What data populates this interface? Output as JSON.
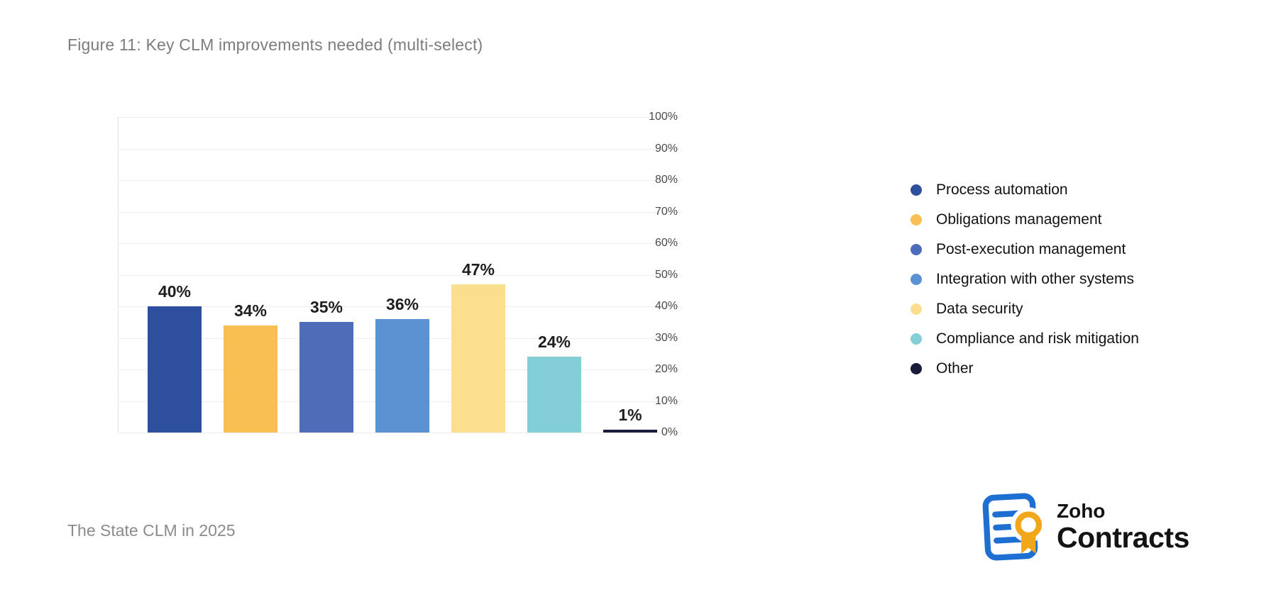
{
  "page": {
    "title": "Figure 11: Key CLM improvements needed (multi-select)",
    "footer": "The State CLM in 2025"
  },
  "chart_data": {
    "type": "bar",
    "title": "Figure 11: Key CLM improvements needed (multi-select)",
    "categories": [
      "Process automation",
      "Obligations management",
      "Post-execution management",
      "Integration with other systems",
      "Data security",
      "Compliance and risk mitigation",
      "Other"
    ],
    "values": [
      40,
      34,
      35,
      36,
      47,
      24,
      1
    ],
    "value_labels": [
      "40%",
      "34%",
      "35%",
      "36%",
      "47%",
      "24%",
      "1%"
    ],
    "colors": [
      "#2e4f9e",
      "#f8bf52",
      "#4e6cb7",
      "#5b93d2",
      "#fbdf8f",
      "#84ced8",
      "#191d3a"
    ],
    "xlabel": "",
    "ylabel": "",
    "ylim": [
      0,
      100
    ],
    "y_ticks": [
      "100%",
      "90%",
      "80%",
      "70%",
      "60%",
      "50%",
      "40%",
      "30%",
      "20%",
      "10%",
      "0%"
    ],
    "grid": "horizontal-light",
    "legend_position": "right"
  },
  "legend": {
    "items": [
      {
        "label": "Process automation",
        "color": "#2e4f9e"
      },
      {
        "label": "Obligations management",
        "color": "#f8bf52"
      },
      {
        "label": "Post-execution management",
        "color": "#4e6cb7"
      },
      {
        "label": "Integration with other systems",
        "color": "#5b93d2"
      },
      {
        "label": "Data security",
        "color": "#fbdf8f"
      },
      {
        "label": "Compliance and risk mitigation",
        "color": "#84ced8"
      },
      {
        "label": "Other",
        "color": "#191d3a"
      }
    ]
  },
  "logo": {
    "brand": "Zoho",
    "product": "Contracts",
    "doc_color": "#1e6fd2",
    "seal_color": "#f2a71b"
  }
}
